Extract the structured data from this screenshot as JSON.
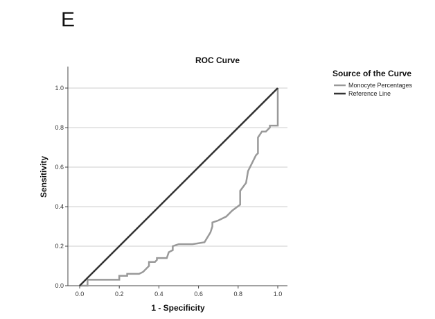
{
  "panel_label": "E",
  "chart_data": {
    "type": "line",
    "title": "ROC Curve",
    "xlabel": "1 - Specificity",
    "ylabel": "Sensitivity",
    "xlim": [
      0,
      1
    ],
    "ylim": [
      0,
      1
    ],
    "xticks": [
      "0.0",
      "0.2",
      "0.4",
      "0.6",
      "0.8",
      "1.0"
    ],
    "yticks": [
      "0.0",
      "0.2",
      "0.4",
      "0.6",
      "0.8",
      "1.0"
    ],
    "grid": "horizontal",
    "legend": {
      "title": "Source of the Curve",
      "placement": "right",
      "entries": [
        "Monocyte Percentages",
        "Reference Line"
      ]
    },
    "colors": {
      "roc": "#999999",
      "reference": "#333333",
      "grid": "#cccccc",
      "axis": "#444444"
    },
    "series": [
      {
        "name": "Monocyte Percentages",
        "x": [
          0,
          0.04,
          0.04,
          0.2,
          0.2,
          0.24,
          0.24,
          0.3,
          0.32,
          0.34,
          0.35,
          0.35,
          0.38,
          0.39,
          0.39,
          0.44,
          0.45,
          0.47,
          0.47,
          0.5,
          0.57,
          0.63,
          0.66,
          0.67,
          0.67,
          0.7,
          0.74,
          0.77,
          0.81,
          0.81,
          0.84,
          0.85,
          0.87,
          0.89,
          0.9,
          0.9,
          0.92,
          0.94,
          0.96,
          0.96,
          1.0,
          1.0
        ],
        "y": [
          0,
          0,
          0.03,
          0.03,
          0.05,
          0.05,
          0.06,
          0.06,
          0.07,
          0.09,
          0.1,
          0.12,
          0.12,
          0.13,
          0.14,
          0.14,
          0.17,
          0.18,
          0.2,
          0.21,
          0.21,
          0.22,
          0.27,
          0.3,
          0.32,
          0.33,
          0.35,
          0.38,
          0.41,
          0.48,
          0.52,
          0.58,
          0.62,
          0.66,
          0.67,
          0.75,
          0.78,
          0.78,
          0.8,
          0.81,
          0.81,
          1.0
        ]
      },
      {
        "name": "Reference Line",
        "x": [
          0,
          1
        ],
        "y": [
          0,
          1
        ]
      }
    ]
  }
}
